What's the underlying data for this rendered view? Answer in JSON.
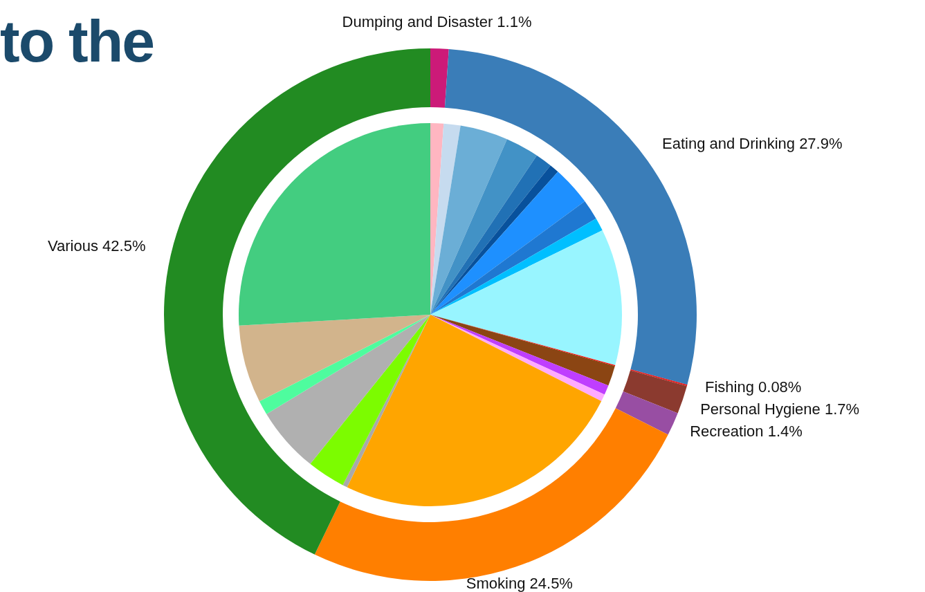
{
  "chart_data": [
    {
      "type": "donut",
      "title": "to the",
      "categories": [
        "Dumping and Disaster",
        "Eating and Drinking",
        "Fishing",
        "Personal Hygiene",
        "Recreation",
        "Smoking",
        "Various"
      ],
      "values": [
        1.1,
        27.9,
        0.08,
        1.7,
        1.4,
        24.5,
        42.5
      ],
      "value_labels": [
        "1.1%",
        "27.9%",
        "0.08%",
        "1.7%",
        "1.4%",
        "24.5%",
        "42.5%"
      ],
      "colors": [
        "#cc1a78",
        "#3a7db8",
        "#e41a1c",
        "#8b3a2f",
        "#984ea3",
        "#ff7f00",
        "#228b22"
      ]
    },
    {
      "type": "pie",
      "categories": [
        null,
        null,
        null,
        null,
        null,
        null,
        null,
        null,
        null,
        null,
        null,
        null,
        null,
        null,
        null,
        null,
        null,
        null,
        null,
        null,
        null
      ],
      "values": [
        1.1,
        1.4,
        4.0,
        2.8,
        1.4,
        0.8,
        3.3,
        1.7,
        1.1,
        11.4,
        0.08,
        1.7,
        0.8,
        0.6,
        24.5,
        0.4,
        3.2,
        5.5,
        1.2,
        6.5,
        25.7
      ],
      "colors": [
        "#ffb6c1",
        "#c6dbef",
        "#6baed6",
        "#4292c6",
        "#2171b5",
        "#08519c",
        "#1e90ff",
        "#1f78d1",
        "#00bfff",
        "#98f5ff",
        "#ff0000",
        "#8b4513",
        "#bf3eff",
        "#ffaaff",
        "#ffa500",
        "#a9a9a9",
        "#7cfc00",
        "#b0b0b0",
        "#4efc9e",
        "#d2b48c",
        "#43cd80"
      ]
    }
  ]
}
